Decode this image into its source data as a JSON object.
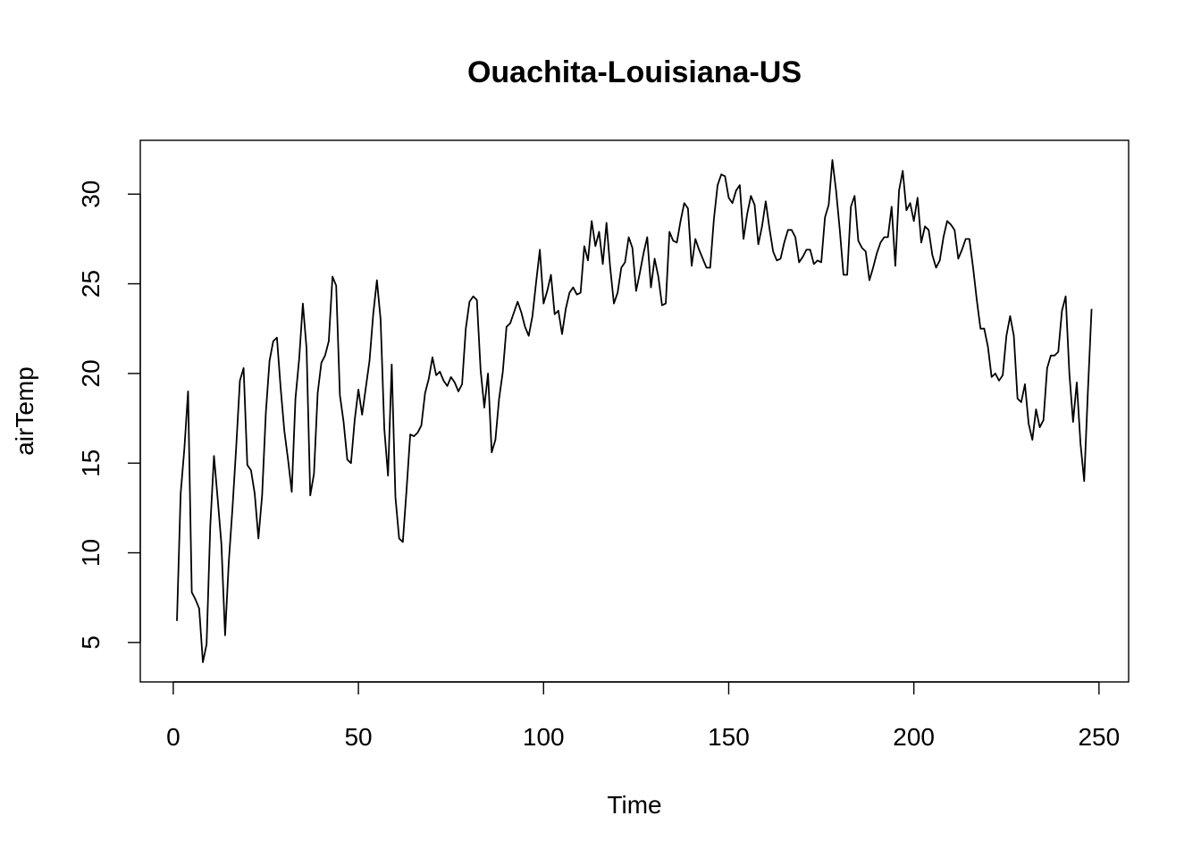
{
  "chart_data": {
    "type": "line",
    "title": "Ouachita-Louisiana-US",
    "xlabel": "Time",
    "ylabel": "airTemp",
    "xlim": [
      -8.9,
      258
    ],
    "ylim": [
      2.8,
      33.0
    ],
    "xticks": [
      0,
      50,
      100,
      150,
      200,
      250
    ],
    "yticks": [
      5,
      10,
      15,
      20,
      25,
      30
    ],
    "grid": false,
    "color": "#000000",
    "x_start": 1,
    "series": [
      {
        "values": [
          6.2,
          13.3,
          15.8,
          19.0,
          7.8,
          7.4,
          6.9,
          3.9,
          4.9,
          11.5,
          15.4,
          13.0,
          10.5,
          5.4,
          9.5,
          12.5,
          15.9,
          19.6,
          20.3,
          14.9,
          14.6,
          13.3,
          10.8,
          13.2,
          17.8,
          20.7,
          21.8,
          22.0,
          19.2,
          16.8,
          15.2,
          13.4,
          18.6,
          20.8,
          23.9,
          21.4,
          13.2,
          14.4,
          18.9,
          20.6,
          21.0,
          21.8,
          25.4,
          24.9,
          18.8,
          17.3,
          15.2,
          15.0,
          17.4,
          19.1,
          17.7,
          19.2,
          20.7,
          23.3,
          25.2,
          23.0,
          16.9,
          14.3,
          20.5,
          13.1,
          10.8,
          10.6,
          13.5,
          16.6,
          16.5,
          16.7,
          17.1,
          18.9,
          19.7,
          20.9,
          19.9,
          20.1,
          19.6,
          19.3,
          19.8,
          19.5,
          19.0,
          19.4,
          22.5,
          24.0,
          24.3,
          24.1,
          20.2,
          18.1,
          20.0,
          15.6,
          16.3,
          18.6,
          20.1,
          22.6,
          22.8,
          23.4,
          24.0,
          23.4,
          22.6,
          22.1,
          23.2,
          25.1,
          26.9,
          23.9,
          24.6,
          25.5,
          23.3,
          23.5,
          22.2,
          23.6,
          24.5,
          24.8,
          24.4,
          24.5,
          27.1,
          26.3,
          28.5,
          27.1,
          27.9,
          26.1,
          28.4,
          25.9,
          23.9,
          24.5,
          25.9,
          26.2,
          27.6,
          27.0,
          24.6,
          25.6,
          26.7,
          27.6,
          24.8,
          26.4,
          25.4,
          23.8,
          23.9,
          27.9,
          27.4,
          27.3,
          28.5,
          29.5,
          29.2,
          26.0,
          27.5,
          26.9,
          26.4,
          25.9,
          25.9,
          28.6,
          30.5,
          31.1,
          31.0,
          29.8,
          29.5,
          30.2,
          30.5,
          27.5,
          28.9,
          29.9,
          29.4,
          27.2,
          28.2,
          29.6,
          28.1,
          26.8,
          26.3,
          26.4,
          27.3,
          28.0,
          28.0,
          27.6,
          26.2,
          26.5,
          26.9,
          26.9,
          26.1,
          26.3,
          26.2,
          28.7,
          29.4,
          31.9,
          30.2,
          28.0,
          25.5,
          25.5,
          29.3,
          29.9,
          27.4,
          27.0,
          26.8,
          25.2,
          25.9,
          26.7,
          27.3,
          27.6,
          27.6,
          29.3,
          26.0,
          30.2,
          31.3,
          29.1,
          29.5,
          28.5,
          29.8,
          27.3,
          28.2,
          28.0,
          26.6,
          25.9,
          26.3,
          27.6,
          28.5,
          28.3,
          28.0,
          26.4,
          26.9,
          27.5,
          27.5,
          25.9,
          24.1,
          22.5,
          22.5,
          21.5,
          19.8,
          20.0,
          19.6,
          19.9,
          22.1,
          23.2,
          22.1,
          18.6,
          18.4,
          19.4,
          17.2,
          16.3,
          18.0,
          17.0,
          17.4,
          20.3,
          21.0,
          21.0,
          21.2,
          23.5,
          24.3,
          20.0,
          17.3,
          19.5,
          16.1,
          14.0,
          19.0,
          23.6
        ]
      }
    ]
  }
}
